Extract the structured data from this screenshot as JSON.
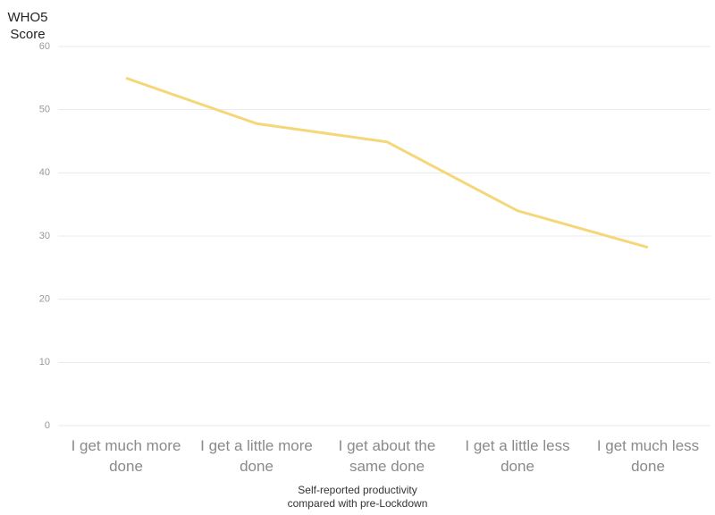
{
  "chart_data": {
    "type": "line",
    "y_label": "WHO5 Score",
    "x_label": "Self-reported productivity compared with pre-Lockdown",
    "categories": [
      "I get much more done",
      "I get a little more done",
      "I get about the same done",
      "I get a little less done",
      "I get much less done"
    ],
    "series": [
      {
        "name": "WHO5 Score",
        "color": "#f5d77a",
        "values": [
          55.0,
          47.8,
          44.9,
          34.0,
          28.2
        ]
      }
    ],
    "ylim": [
      0,
      60
    ],
    "yticks": [
      0,
      10,
      20,
      30,
      40,
      50,
      60
    ],
    "grid": true
  }
}
